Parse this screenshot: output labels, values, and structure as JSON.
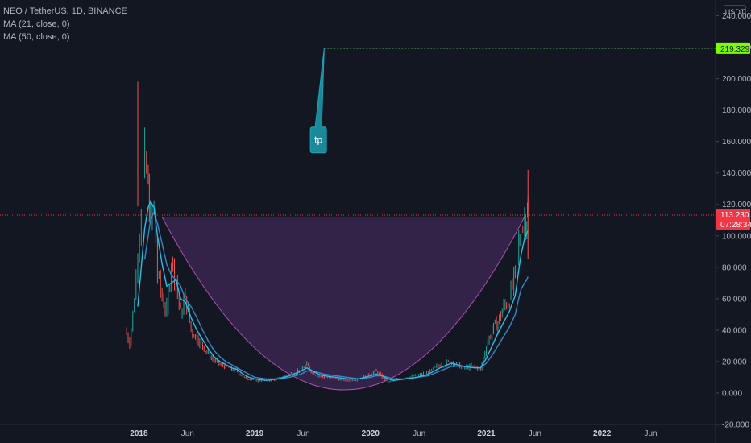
{
  "legend": {
    "symbol": "NEO / TetherUS, 1D, BINANCE",
    "ma21": "MA (21, close, 0)",
    "ma50": "MA (50, close, 0)"
  },
  "currency": "USDT",
  "colors": {
    "background": "#131722",
    "candle_up": "#26a69a",
    "candle_down": "#ef5350",
    "ma_fast": "#2ebde6",
    "ma_slow": "#3a86c8",
    "cup_fill": "#3b2650",
    "cup_line": "#b04fb0",
    "target_line": "#4caf50",
    "target_label": "#7cfc00",
    "price_label": "#f23645",
    "callout": "#1a8a9b"
  },
  "chart_data": {
    "type": "line",
    "ylim": [
      -20,
      250
    ],
    "y_ticks": [
      "240.000",
      "220.000",
      "200.000",
      "180.000",
      "160.000",
      "140.000",
      "120.000",
      "100.000",
      "80.000",
      "60.000",
      "40.000",
      "20.000",
      "0.000",
      "-20.000"
    ],
    "y_tick_values": [
      240,
      220,
      200,
      180,
      160,
      140,
      120,
      100,
      80,
      60,
      40,
      20,
      0,
      -20
    ],
    "x_ticks": [
      {
        "label": "2018",
        "t": 2018.0,
        "major": true
      },
      {
        "label": "Jun",
        "t": 2018.42,
        "major": false
      },
      {
        "label": "2019",
        "t": 2019.0,
        "major": true
      },
      {
        "label": "Jun",
        "t": 2019.42,
        "major": false
      },
      {
        "label": "2020",
        "t": 2020.0,
        "major": true
      },
      {
        "label": "Jun",
        "t": 2020.42,
        "major": false
      },
      {
        "label": "2021",
        "t": 2021.0,
        "major": true
      },
      {
        "label": "Jun",
        "t": 2021.42,
        "major": false
      },
      {
        "label": "2022",
        "t": 2022.0,
        "major": true
      },
      {
        "label": "Jun",
        "t": 2022.42,
        "major": false
      }
    ],
    "xlim": [
      2016.8,
      2022.98
    ],
    "price_series": {
      "name": "NEO / TetherUS",
      "t": [
        2017.88,
        2017.92,
        2017.96,
        2017.99,
        2018.02,
        2018.05,
        2018.08,
        2018.1,
        2018.13,
        2018.16,
        2018.2,
        2018.24,
        2018.28,
        2018.32,
        2018.36,
        2018.4,
        2018.45,
        2018.5,
        2018.55,
        2018.6,
        2018.65,
        2018.7,
        2018.75,
        2018.8,
        2018.85,
        2018.9,
        2018.95,
        2019.0,
        2019.1,
        2019.2,
        2019.3,
        2019.4,
        2019.45,
        2019.5,
        2019.55,
        2019.6,
        2019.7,
        2019.8,
        2019.9,
        2020.0,
        2020.05,
        2020.1,
        2020.15,
        2020.2,
        2020.3,
        2020.4,
        2020.5,
        2020.6,
        2020.7,
        2020.8,
        2020.9,
        2020.95,
        2021.0,
        2021.05,
        2021.1,
        2021.15,
        2021.2,
        2021.25,
        2021.28,
        2021.3,
        2021.33,
        2021.35,
        2021.36
      ],
      "close": [
        40,
        32,
        60,
        90,
        120,
        150,
        130,
        110,
        118,
        75,
        60,
        52,
        85,
        70,
        50,
        62,
        40,
        35,
        30,
        25,
        20,
        18,
        17,
        15,
        14,
        10,
        9,
        8,
        8,
        9,
        12,
        15,
        18,
        13,
        11,
        10,
        9,
        8,
        9,
        12,
        14,
        10,
        7,
        8,
        10,
        11,
        13,
        18,
        20,
        16,
        17,
        15,
        30,
        40,
        45,
        55,
        60,
        75,
        95,
        105,
        110,
        113.23,
        113.23
      ]
    },
    "ma21": [
      null,
      null,
      null,
      55,
      80,
      105,
      118,
      122,
      118,
      100,
      82,
      68,
      70,
      72,
      60,
      58,
      48,
      40,
      34,
      28,
      23,
      20,
      18,
      16,
      15,
      12,
      10,
      9,
      8,
      9,
      11,
      14,
      16,
      14,
      12,
      11,
      10,
      9,
      9,
      11,
      12,
      11,
      9,
      8,
      9,
      10,
      12,
      16,
      19,
      17,
      16,
      16,
      22,
      30,
      38,
      45,
      52,
      62,
      78,
      88,
      98,
      102,
      103
    ],
    "ma50": [
      null,
      null,
      null,
      null,
      null,
      85,
      100,
      110,
      115,
      108,
      95,
      82,
      75,
      72,
      68,
      60,
      55,
      48,
      40,
      33,
      27,
      23,
      20,
      18,
      16,
      14,
      12,
      10,
      9,
      9,
      10,
      12,
      14,
      14,
      13,
      12,
      11,
      10,
      9,
      10,
      11,
      11,
      10,
      9,
      9,
      10,
      11,
      14,
      17,
      17,
      16,
      16,
      19,
      24,
      30,
      36,
      42,
      50,
      60,
      66,
      70,
      72,
      74
    ],
    "highs": [
      {
        "t": 2017.99,
        "v": 198
      },
      {
        "t": 2021.36,
        "v": 142
      }
    ],
    "cup": {
      "left_t": 2018.2,
      "right_t": 2021.33,
      "rim": 112,
      "bottom_t": 2019.78,
      "bottom": 2
    },
    "last_price": {
      "label": "113.230",
      "value": 113.23,
      "countdown": "07:28:34"
    },
    "target": {
      "label": "219.329",
      "value": 219.329,
      "start_t": 2019.6
    },
    "callout": {
      "text": "tp",
      "tip_t": 2019.6,
      "tip_v": 219.329,
      "box_t": 2019.55,
      "box_v": 161
    }
  }
}
